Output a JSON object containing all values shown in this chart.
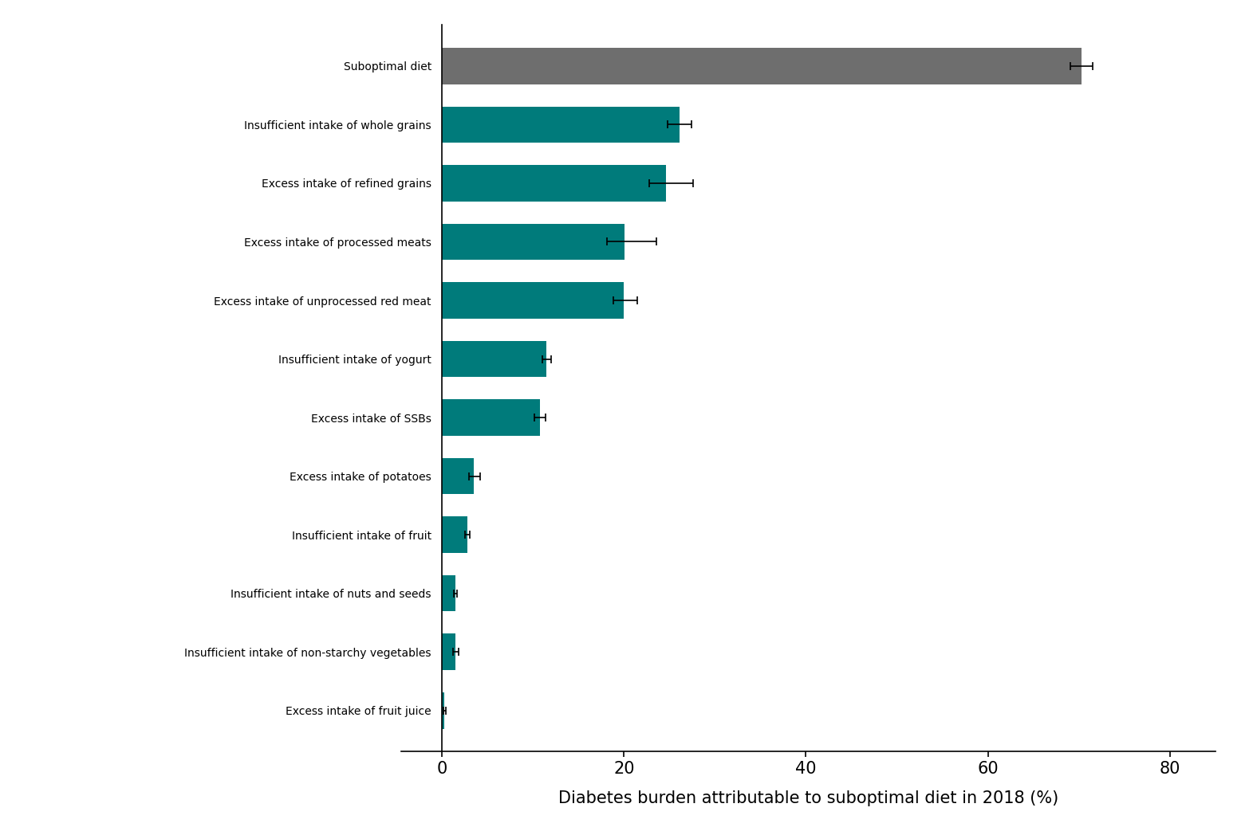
{
  "categories": [
    "Suboptimal diet",
    "Insufficient intake of whole grains",
    "Excess intake of refined grains",
    "Excess intake of processed meats",
    "Excess intake of unprocessed red meat",
    "Insufficient intake of yogurt",
    "Excess intake of SSBs",
    "Excess intake of potatoes",
    "Insufficient intake of fruit",
    "Insufficient intake of nuts and seeds",
    "Insufficient intake of non-starchy vegetables",
    "Excess intake of fruit juice"
  ],
  "values": [
    70.3,
    26.1,
    24.6,
    20.1,
    20.0,
    11.5,
    10.8,
    3.5,
    2.8,
    1.5,
    1.5,
    0.3
  ],
  "errors_low": [
    1.2,
    1.3,
    1.8,
    2.0,
    1.2,
    0.5,
    0.6,
    0.5,
    0.3,
    0.2,
    0.3,
    0.1
  ],
  "errors_high": [
    1.2,
    1.3,
    3.0,
    3.5,
    1.5,
    0.5,
    0.6,
    0.7,
    0.3,
    0.2,
    0.3,
    0.1
  ],
  "bar_colors": [
    "#6e6e6e",
    "#007b7b",
    "#007b7b",
    "#007b7b",
    "#007b7b",
    "#007b7b",
    "#007b7b",
    "#007b7b",
    "#007b7b",
    "#007b7b",
    "#007b7b",
    "#007b7b"
  ],
  "xlabel": "Diabetes burden attributable to suboptimal diet in 2018 (%)",
  "xlim": [
    -4.5,
    85
  ],
  "xticks": [
    0,
    20,
    40,
    60,
    80
  ],
  "bar_height": 0.62,
  "background_color": "#ffffff",
  "label_fontsize": 15,
  "tick_fontsize": 15,
  "xlabel_fontsize": 15
}
